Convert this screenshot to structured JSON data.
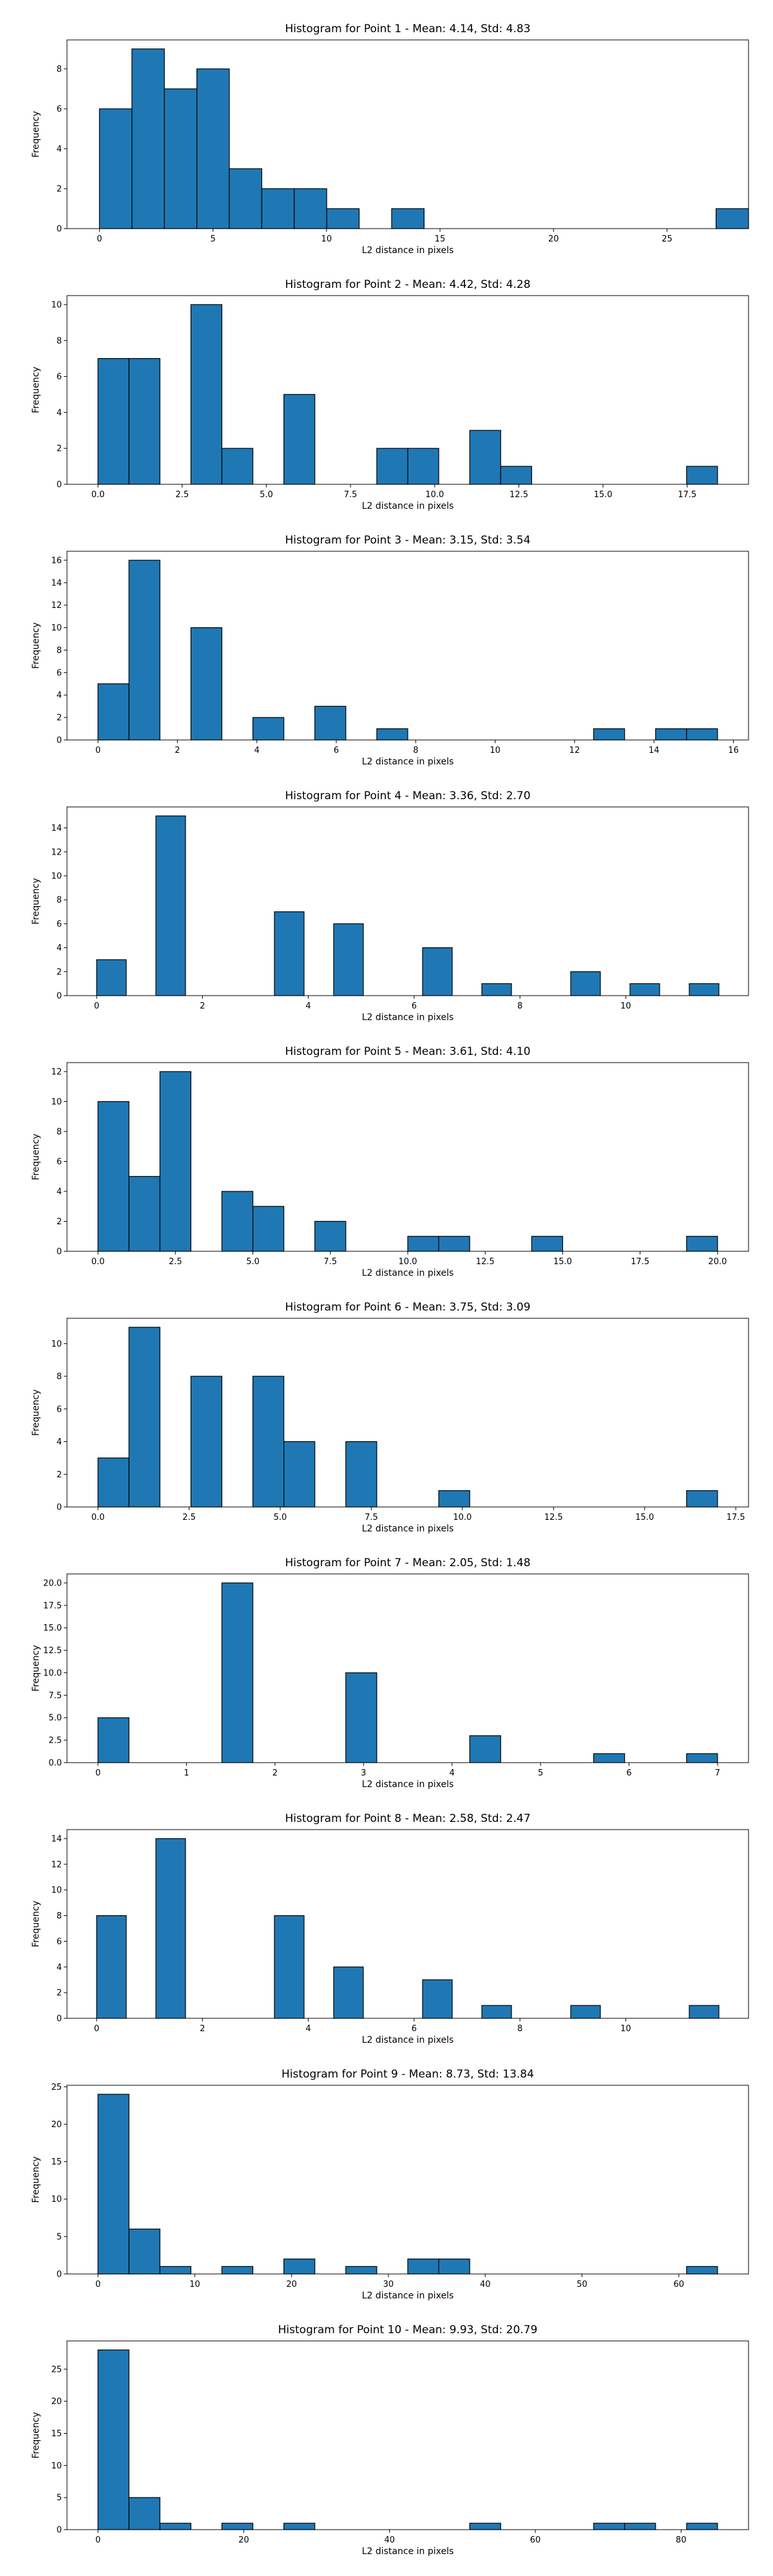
{
  "chart_data": [
    {
      "type": "bar",
      "title": "Histogram for Point 1 - Mean: 4.14, Std: 4.83",
      "xlabel": "L2 distance in pixels",
      "ylabel": "Frequency",
      "bin_width": 1.43,
      "bins": [
        [
          0.0,
          6
        ],
        [
          1.43,
          9
        ],
        [
          2.86,
          7
        ],
        [
          4.29,
          8
        ],
        [
          5.72,
          3
        ],
        [
          7.15,
          2
        ],
        [
          8.58,
          2
        ],
        [
          10.01,
          1
        ],
        [
          12.87,
          1
        ],
        [
          27.16,
          1
        ]
      ],
      "xlim": [
        -1.43,
        28.59
      ],
      "ylim": [
        0,
        9.45
      ],
      "xticks": [
        0,
        5,
        10,
        15,
        20,
        25
      ],
      "xtick_labels": [
        "0",
        "5",
        "10",
        "15",
        "20",
        "25"
      ],
      "yticks": [
        0,
        2,
        4,
        6,
        8
      ],
      "ytick_labels": [
        "0",
        "2",
        "4",
        "6",
        "8"
      ]
    },
    {
      "type": "bar",
      "title": "Histogram for Point 2 - Mean: 4.42, Std: 4.28",
      "xlabel": "L2 distance in pixels",
      "ylabel": "Frequency",
      "bin_width": 0.92,
      "bins": [
        [
          0.0,
          7
        ],
        [
          0.92,
          7
        ],
        [
          2.76,
          10
        ],
        [
          3.68,
          2
        ],
        [
          5.52,
          5
        ],
        [
          8.28,
          2
        ],
        [
          9.2,
          2
        ],
        [
          11.04,
          3
        ],
        [
          11.96,
          1
        ],
        [
          17.48,
          1
        ]
      ],
      "xlim": [
        -0.92,
        19.32
      ],
      "ylim": [
        0,
        10.5
      ],
      "xticks": [
        0,
        2.5,
        5,
        7.5,
        10,
        12.5,
        15,
        17.5
      ],
      "xtick_labels": [
        "0.0",
        "2.5",
        "5.0",
        "7.5",
        "10.0",
        "12.5",
        "15.0",
        "17.5"
      ],
      "yticks": [
        0,
        2,
        4,
        6,
        8,
        10
      ],
      "ytick_labels": [
        "0",
        "2",
        "4",
        "6",
        "8",
        "10"
      ]
    },
    {
      "type": "bar",
      "title": "Histogram for Point 3 - Mean: 3.15, Std: 3.54",
      "xlabel": "L2 distance in pixels",
      "ylabel": "Frequency",
      "bin_width": 0.78,
      "bins": [
        [
          0.0,
          5
        ],
        [
          0.78,
          16
        ],
        [
          2.34,
          10
        ],
        [
          3.9,
          2
        ],
        [
          5.46,
          3
        ],
        [
          7.02,
          1
        ],
        [
          12.48,
          1
        ],
        [
          14.04,
          1
        ],
        [
          14.82,
          1
        ]
      ],
      "xlim": [
        -0.78,
        16.38
      ],
      "ylim": [
        0,
        16.8
      ],
      "xticks": [
        0,
        2,
        4,
        6,
        8,
        10,
        12,
        14,
        16
      ],
      "xtick_labels": [
        "0",
        "2",
        "4",
        "6",
        "8",
        "10",
        "12",
        "14",
        "16"
      ],
      "yticks": [
        0,
        2,
        4,
        6,
        8,
        10,
        12,
        14,
        16
      ],
      "ytick_labels": [
        "0",
        "2",
        "4",
        "6",
        "8",
        "10",
        "12",
        "14",
        "16"
      ]
    },
    {
      "type": "bar",
      "title": "Histogram for Point 4 - Mean: 3.36, Std: 2.70",
      "xlabel": "L2 distance in pixels",
      "ylabel": "Frequency",
      "bin_width": 0.56,
      "bins": [
        [
          0.0,
          3
        ],
        [
          1.12,
          15
        ],
        [
          3.36,
          7
        ],
        [
          4.48,
          6
        ],
        [
          6.16,
          4
        ],
        [
          7.28,
          1
        ],
        [
          8.96,
          2
        ],
        [
          10.08,
          1
        ],
        [
          11.2,
          1
        ]
      ],
      "xlim": [
        -0.56,
        12.32
      ],
      "ylim": [
        0,
        15.75
      ],
      "xticks": [
        0,
        2,
        4,
        6,
        8,
        10
      ],
      "xtick_labels": [
        "0",
        "2",
        "4",
        "6",
        "8",
        "10"
      ],
      "yticks": [
        0,
        2,
        4,
        6,
        8,
        10,
        12,
        14
      ],
      "ytick_labels": [
        "0",
        "2",
        "4",
        "6",
        "8",
        "10",
        "12",
        "14"
      ]
    },
    {
      "type": "bar",
      "title": "Histogram for Point 5 - Mean: 3.61, Std: 4.10",
      "xlabel": "L2 distance in pixels",
      "ylabel": "Frequency",
      "bin_width": 1.0,
      "bins": [
        [
          0.0,
          10
        ],
        [
          1.0,
          5
        ],
        [
          2.0,
          12
        ],
        [
          4.0,
          4
        ],
        [
          5.0,
          3
        ],
        [
          7.0,
          2
        ],
        [
          10.0,
          1
        ],
        [
          11.0,
          1
        ],
        [
          14.0,
          1
        ],
        [
          19.0,
          1
        ]
      ],
      "xlim": [
        -1.0,
        21.0
      ],
      "ylim": [
        0,
        12.6
      ],
      "xticks": [
        0,
        2.5,
        5,
        7.5,
        10,
        12.5,
        15,
        17.5,
        20
      ],
      "xtick_labels": [
        "0.0",
        "2.5",
        "5.0",
        "7.5",
        "10.0",
        "12.5",
        "15.0",
        "17.5",
        "20.0"
      ],
      "yticks": [
        0,
        2,
        4,
        6,
        8,
        10,
        12
      ],
      "ytick_labels": [
        "0",
        "2",
        "4",
        "6",
        "8",
        "10",
        "12"
      ]
    },
    {
      "type": "bar",
      "title": "Histogram for Point 6 - Mean: 3.75, Std: 3.09",
      "xlabel": "L2 distance in pixels",
      "ylabel": "Frequency",
      "bin_width": 0.85,
      "bins": [
        [
          0.0,
          3
        ],
        [
          0.85,
          11
        ],
        [
          2.55,
          8
        ],
        [
          4.25,
          8
        ],
        [
          5.1,
          4
        ],
        [
          6.8,
          4
        ],
        [
          9.35,
          1
        ],
        [
          16.15,
          1
        ]
      ],
      "xlim": [
        -0.85,
        17.85
      ],
      "ylim": [
        0,
        11.55
      ],
      "xticks": [
        0,
        2.5,
        5,
        7.5,
        10,
        12.5,
        15,
        17.5
      ],
      "xtick_labels": [
        "0.0",
        "2.5",
        "5.0",
        "7.5",
        "10.0",
        "12.5",
        "15.0",
        "17.5"
      ],
      "yticks": [
        0,
        2,
        4,
        6,
        8,
        10
      ],
      "ytick_labels": [
        "0",
        "2",
        "4",
        "6",
        "8",
        "10"
      ]
    },
    {
      "type": "bar",
      "title": "Histogram for Point 7 - Mean: 2.05, Std: 1.48",
      "xlabel": "L2 distance in pixels",
      "ylabel": "Frequency",
      "bin_width": 0.35,
      "bins": [
        [
          0.0,
          5
        ],
        [
          1.4,
          20
        ],
        [
          2.8,
          10
        ],
        [
          4.2,
          3
        ],
        [
          5.6,
          1
        ],
        [
          6.65,
          1
        ]
      ],
      "xlim": [
        -0.35,
        7.35
      ],
      "ylim": [
        0,
        21.0
      ],
      "xticks": [
        0,
        1,
        2,
        3,
        4,
        5,
        6,
        7
      ],
      "xtick_labels": [
        "0",
        "1",
        "2",
        "3",
        "4",
        "5",
        "6",
        "7"
      ],
      "yticks": [
        0,
        2.5,
        5,
        7.5,
        10,
        12.5,
        15,
        17.5,
        20
      ],
      "ytick_labels": [
        "0.0",
        "2.5",
        "5.0",
        "7.5",
        "10.0",
        "12.5",
        "15.0",
        "17.5",
        "20.0"
      ]
    },
    {
      "type": "bar",
      "title": "Histogram for Point 8 - Mean: 2.58, Std: 2.47",
      "xlabel": "L2 distance in pixels",
      "ylabel": "Frequency",
      "bin_width": 0.56,
      "bins": [
        [
          0.0,
          8
        ],
        [
          1.12,
          14
        ],
        [
          3.36,
          8
        ],
        [
          4.48,
          4
        ],
        [
          6.16,
          3
        ],
        [
          7.28,
          1
        ],
        [
          8.96,
          1
        ],
        [
          11.2,
          1
        ]
      ],
      "xlim": [
        -0.56,
        12.32
      ],
      "ylim": [
        0,
        14.7
      ],
      "xticks": [
        0,
        2,
        4,
        6,
        8,
        10
      ],
      "xtick_labels": [
        "0",
        "2",
        "4",
        "6",
        "8",
        "10"
      ],
      "yticks": [
        0,
        2,
        4,
        6,
        8,
        10,
        12,
        14
      ],
      "ytick_labels": [
        "0",
        "2",
        "4",
        "6",
        "8",
        "10",
        "12",
        "14"
      ]
    },
    {
      "type": "bar",
      "title": "Histogram for Point 9 - Mean: 8.73, Std: 13.84",
      "xlabel": "L2 distance in pixels",
      "ylabel": "Frequency",
      "bin_width": 3.2,
      "bins": [
        [
          0.0,
          24
        ],
        [
          3.2,
          6
        ],
        [
          6.4,
          1
        ],
        [
          12.8,
          1
        ],
        [
          19.2,
          2
        ],
        [
          25.6,
          1
        ],
        [
          32.0,
          2
        ],
        [
          35.2,
          2
        ],
        [
          60.8,
          1
        ]
      ],
      "xlim": [
        -3.2,
        67.2
      ],
      "ylim": [
        0,
        25.2
      ],
      "xticks": [
        0,
        10,
        20,
        30,
        40,
        50,
        60
      ],
      "xtick_labels": [
        "0",
        "10",
        "20",
        "30",
        "40",
        "50",
        "60"
      ],
      "yticks": [
        0,
        5,
        10,
        15,
        20,
        25
      ],
      "ytick_labels": [
        "0",
        "5",
        "10",
        "15",
        "20",
        "25"
      ]
    },
    {
      "type": "bar",
      "title": "Histogram for Point 10 - Mean: 9.93, Std: 20.79",
      "xlabel": "L2 distance in pixels",
      "ylabel": "Frequency",
      "bin_width": 4.25,
      "bins": [
        [
          0.0,
          28
        ],
        [
          4.25,
          5
        ],
        [
          8.5,
          1
        ],
        [
          17.0,
          1
        ],
        [
          25.5,
          1
        ],
        [
          51.0,
          1
        ],
        [
          68.0,
          1
        ],
        [
          72.25,
          1
        ],
        [
          80.75,
          1
        ]
      ],
      "xlim": [
        -4.25,
        89.25
      ],
      "ylim": [
        0,
        29.4
      ],
      "xticks": [
        0,
        20,
        40,
        60,
        80
      ],
      "xtick_labels": [
        "0",
        "20",
        "40",
        "60",
        "80"
      ],
      "yticks": [
        0,
        5,
        10,
        15,
        20,
        25
      ],
      "ytick_labels": [
        "0",
        "5",
        "10",
        "15",
        "20",
        "25"
      ]
    }
  ]
}
